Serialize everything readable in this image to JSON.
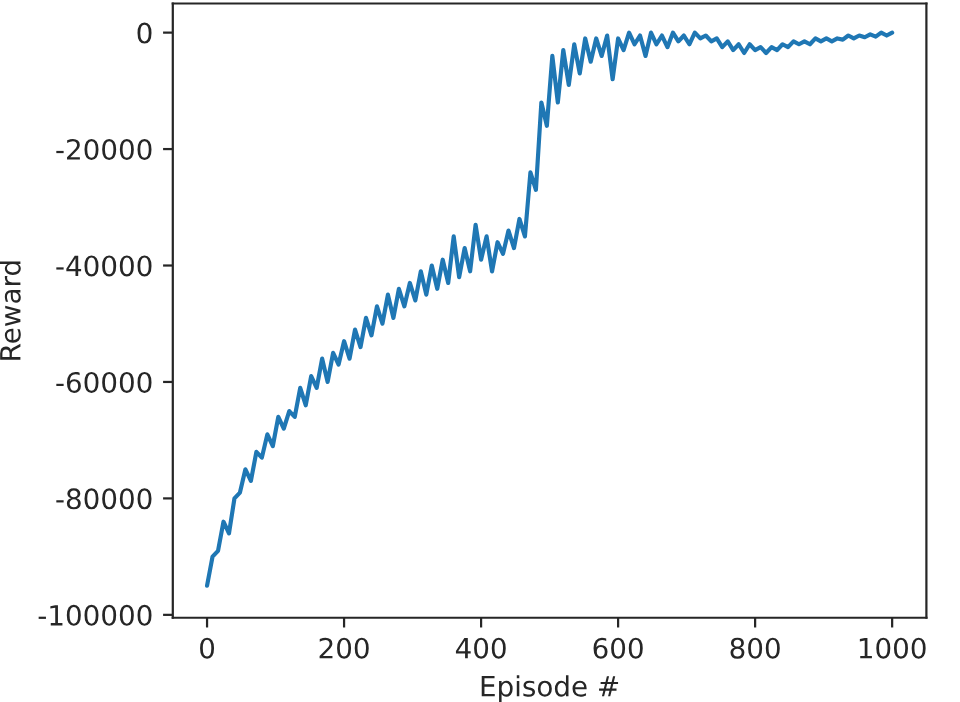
{
  "chart_data": {
    "type": "line",
    "xlabel": "Episode #",
    "ylabel": "Reward",
    "xlim": [
      -50,
      1050
    ],
    "ylim": [
      -100500,
      5000
    ],
    "xticks": [
      0,
      200,
      400,
      600,
      800,
      1000
    ],
    "yticks": [
      -100000,
      -80000,
      -60000,
      -40000,
      -20000,
      0
    ],
    "grid": false,
    "legend": false,
    "x": [
      0,
      8,
      16,
      24,
      32,
      40,
      48,
      56,
      64,
      72,
      80,
      88,
      96,
      104,
      112,
      120,
      128,
      136,
      144,
      152,
      160,
      168,
      176,
      184,
      192,
      200,
      208,
      216,
      224,
      232,
      240,
      248,
      256,
      264,
      272,
      280,
      288,
      296,
      304,
      312,
      320,
      328,
      336,
      344,
      352,
      360,
      368,
      376,
      384,
      392,
      400,
      408,
      416,
      424,
      432,
      440,
      448,
      456,
      464,
      472,
      480,
      488,
      496,
      504,
      512,
      520,
      528,
      536,
      544,
      552,
      560,
      568,
      576,
      584,
      592,
      600,
      608,
      616,
      624,
      632,
      640,
      648,
      656,
      664,
      672,
      680,
      688,
      696,
      704,
      712,
      720,
      728,
      736,
      744,
      752,
      760,
      768,
      776,
      784,
      792,
      800,
      808,
      816,
      824,
      832,
      840,
      848,
      856,
      864,
      872,
      880,
      888,
      896,
      904,
      912,
      920,
      928,
      936,
      944,
      952,
      960,
      968,
      976,
      984,
      992,
      1000
    ],
    "series": [
      {
        "color": "#1f77b4",
        "values": [
          -95000,
          -90000,
          -89000,
          -84000,
          -86000,
          -80000,
          -79000,
          -75000,
          -77000,
          -72000,
          -73000,
          -69000,
          -71000,
          -66000,
          -68000,
          -65000,
          -66000,
          -61000,
          -64000,
          -59000,
          -61000,
          -56000,
          -60000,
          -55000,
          -57000,
          -53000,
          -56000,
          -51000,
          -54000,
          -49000,
          -52000,
          -47000,
          -50000,
          -45000,
          -49000,
          -44000,
          -47000,
          -43000,
          -46000,
          -41000,
          -45000,
          -40000,
          -44000,
          -39000,
          -43000,
          -35000,
          -42000,
          -37000,
          -41000,
          -33000,
          -39000,
          -35000,
          -41000,
          -36000,
          -38000,
          -34000,
          -37000,
          -32000,
          -35000,
          -24000,
          -27000,
          -12000,
          -16000,
          -4000,
          -12000,
          -3000,
          -9000,
          -2000,
          -7000,
          -1000,
          -5000,
          -1000,
          -4000,
          -500,
          -8000,
          -1000,
          -3000,
          0,
          -2000,
          -500,
          -4000,
          0,
          -2000,
          -500,
          -2500,
          0,
          -1500,
          -500,
          -2000,
          0,
          -1000,
          -500,
          -1500,
          -1000,
          -2500,
          -1500,
          -3000,
          -2000,
          -3500,
          -2000,
          -3000,
          -2500,
          -3500,
          -2500,
          -3000,
          -2000,
          -2500,
          -1500,
          -2000,
          -1500,
          -2000,
          -1000,
          -1500,
          -1000,
          -1500,
          -1000,
          -1200,
          -500,
          -1000,
          -500,
          -800,
          -300,
          -700,
          0,
          -500,
          0
        ]
      }
    ]
  }
}
